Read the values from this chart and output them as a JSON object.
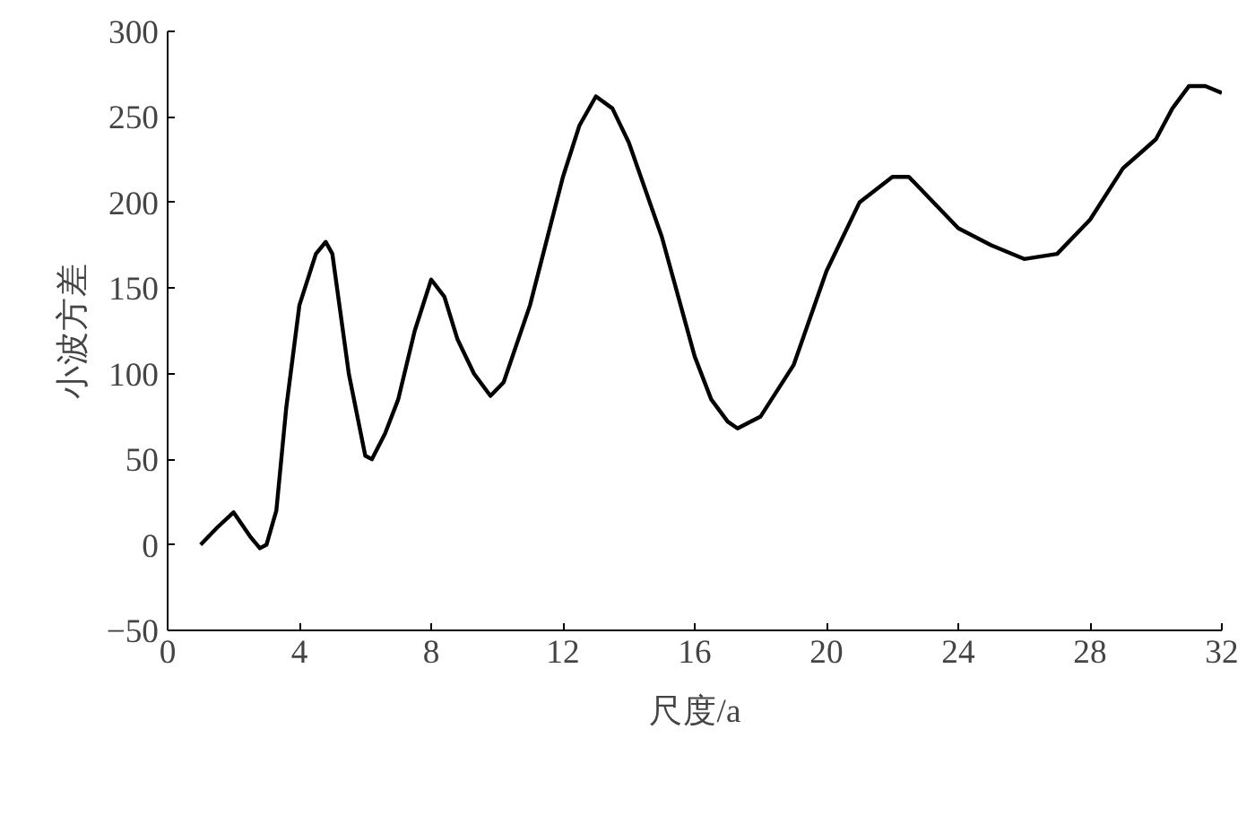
{
  "chart_data": {
    "type": "line",
    "xlabel": "尺度/a",
    "ylabel": "小波方差",
    "xlim": [
      0,
      32
    ],
    "ylim": [
      -50,
      300
    ],
    "xticks": [
      0,
      4,
      8,
      12,
      16,
      20,
      24,
      28,
      32
    ],
    "yticks": [
      -50,
      0,
      50,
      100,
      150,
      200,
      250,
      300
    ],
    "grid": false,
    "marker": "none",
    "line_style": "solid",
    "series": [
      {
        "color": "#000000",
        "x": [
          1,
          1.5,
          2,
          2.5,
          2.8,
          3,
          3.3,
          3.6,
          4,
          4.5,
          4.8,
          5,
          5.5,
          6,
          6.2,
          6.6,
          7,
          7.5,
          8,
          8.4,
          8.8,
          9.3,
          9.8,
          10.2,
          11,
          12,
          12.5,
          13,
          13.5,
          14,
          15,
          16,
          16.5,
          17,
          17.3,
          18,
          19,
          20,
          21,
          22,
          22.5,
          23,
          24,
          25,
          26,
          27,
          28,
          29,
          30,
          30.5,
          31,
          31.5,
          32
        ],
        "values": [
          0,
          10,
          19,
          5,
          -2,
          0,
          20,
          80,
          140,
          170,
          177,
          170,
          100,
          52,
          50,
          65,
          85,
          125,
          155,
          145,
          120,
          100,
          87,
          95,
          140,
          215,
          245,
          262,
          255,
          235,
          180,
          110,
          85,
          72,
          68,
          75,
          105,
          160,
          200,
          215,
          215,
          205,
          185,
          175,
          167,
          170,
          190,
          220,
          237,
          255,
          268,
          268,
          264
        ]
      }
    ]
  }
}
